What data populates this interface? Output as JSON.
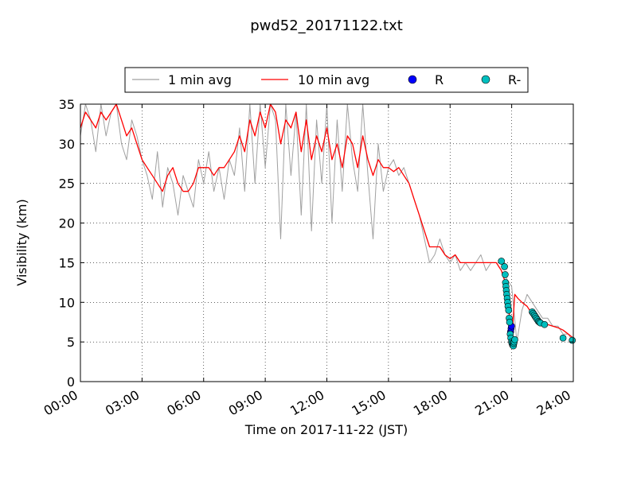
{
  "chart_data": {
    "type": "line",
    "title": "pwd52_20171122.txt",
    "xlabel": "Time on 2017-11-22 (JST)",
    "ylabel": "Visibility (km)",
    "x_unit": "hours",
    "xlim": [
      0,
      24
    ],
    "ylim": [
      0,
      35
    ],
    "x_ticks": [
      0,
      3,
      6,
      9,
      12,
      15,
      18,
      21,
      24
    ],
    "x_tick_labels": [
      "00:00",
      "03:00",
      "06:00",
      "09:00",
      "12:00",
      "15:00",
      "18:00",
      "21:00",
      "24:00"
    ],
    "y_ticks": [
      0,
      5,
      10,
      15,
      20,
      25,
      30,
      35
    ],
    "y_tick_labels": [
      "0",
      "5",
      "10",
      "15",
      "20",
      "25",
      "30",
      "35"
    ],
    "grid": true,
    "legend_placement": "top-center",
    "series": [
      {
        "name": "1 min avg",
        "kind": "line",
        "color": "#a0a0a0",
        "x": [
          0,
          0.25,
          0.5,
          0.75,
          1.0,
          1.25,
          1.5,
          1.75,
          2.0,
          2.25,
          2.5,
          2.75,
          3.0,
          3.25,
          3.5,
          3.75,
          4.0,
          4.25,
          4.5,
          4.75,
          5.0,
          5.25,
          5.5,
          5.75,
          6.0,
          6.25,
          6.5,
          6.75,
          7.0,
          7.25,
          7.5,
          7.75,
          8.0,
          8.25,
          8.5,
          8.75,
          9.0,
          9.25,
          9.5,
          9.75,
          10.0,
          10.25,
          10.5,
          10.75,
          11.0,
          11.25,
          11.5,
          11.75,
          12.0,
          12.25,
          12.5,
          12.75,
          13.0,
          13.25,
          13.5,
          13.75,
          14.0,
          14.25,
          14.5,
          14.75,
          15.0,
          15.25,
          15.5,
          15.75,
          16.0,
          16.25,
          16.5,
          16.75,
          17.0,
          17.25,
          17.5,
          17.75,
          18.0,
          18.25,
          18.5,
          18.75,
          19.0,
          19.25,
          19.5,
          19.75,
          20.0,
          20.25,
          20.5,
          20.75,
          21.0,
          21.25,
          21.5,
          21.75,
          22.0,
          22.25,
          22.5,
          22.75,
          23.0,
          23.25,
          23.5,
          23.75,
          24.0
        ],
        "y": [
          31,
          35,
          33,
          29,
          35,
          31,
          34,
          35,
          30,
          28,
          33,
          31,
          28,
          26,
          23,
          29,
          22,
          27,
          25,
          21,
          26,
          24,
          22,
          28,
          25,
          29,
          24,
          27,
          23,
          28,
          26,
          32,
          24,
          35,
          25,
          35,
          27,
          35,
          33,
          18,
          35,
          26,
          34,
          21,
          35,
          19,
          33,
          25,
          35,
          20,
          33,
          24,
          35,
          28,
          24,
          35,
          26,
          18,
          30,
          24,
          27,
          28,
          26,
          27,
          25,
          23,
          21,
          18,
          15,
          16,
          18,
          16,
          15,
          16,
          14,
          15,
          14,
          15,
          16,
          14,
          15,
          15,
          14,
          13,
          12,
          5,
          9,
          11,
          10,
          9,
          8,
          8,
          7,
          7,
          6,
          6,
          5
        ]
      },
      {
        "name": "10 min avg",
        "kind": "line",
        "color": "#ff0000",
        "x": [
          0,
          0.25,
          0.5,
          0.75,
          1.0,
          1.25,
          1.5,
          1.75,
          2.0,
          2.25,
          2.5,
          2.75,
          3.0,
          3.25,
          3.5,
          3.75,
          4.0,
          4.25,
          4.5,
          4.75,
          5.0,
          5.25,
          5.5,
          5.75,
          6.0,
          6.25,
          6.5,
          6.75,
          7.0,
          7.25,
          7.5,
          7.75,
          8.0,
          8.25,
          8.5,
          8.75,
          9.0,
          9.25,
          9.5,
          9.75,
          10.0,
          10.25,
          10.5,
          10.75,
          11.0,
          11.25,
          11.5,
          11.75,
          12.0,
          12.25,
          12.5,
          12.75,
          13.0,
          13.25,
          13.5,
          13.75,
          14.0,
          14.25,
          14.5,
          14.75,
          15.0,
          15.25,
          15.5,
          15.75,
          16.0,
          16.25,
          16.5,
          16.75,
          17.0,
          17.25,
          17.5,
          17.75,
          18.0,
          18.25,
          18.5,
          18.75,
          19.0,
          19.25,
          19.5,
          19.75,
          20.0,
          20.25,
          20.5,
          20.75,
          20.9,
          21.0,
          21.15,
          21.3,
          21.5,
          21.75,
          22.0,
          22.25,
          22.5,
          22.75,
          23.0,
          23.25,
          23.5,
          23.75,
          24.0
        ],
        "y": [
          32,
          34,
          33,
          32,
          34,
          33,
          34,
          35,
          33,
          31,
          32,
          30,
          28,
          27,
          26,
          25,
          24,
          26,
          27,
          25,
          24,
          24,
          25,
          27,
          27,
          27,
          26,
          27,
          27,
          28,
          29,
          31,
          29,
          33,
          31,
          34,
          32,
          35,
          34,
          30,
          33,
          32,
          34,
          29,
          33,
          28,
          31,
          29,
          32,
          28,
          30,
          27,
          31,
          30,
          27,
          31,
          28,
          26,
          28,
          27,
          27,
          26.5,
          27,
          26,
          25,
          23,
          21,
          19,
          17,
          17,
          17,
          16,
          15.5,
          16,
          15,
          15,
          15,
          15,
          15,
          15,
          15,
          15,
          14,
          12,
          8,
          5,
          11,
          10.5,
          10,
          9.5,
          8.5,
          8,
          7.5,
          7.2,
          7,
          6.8,
          6.5,
          6,
          5.5
        ]
      },
      {
        "name": "R",
        "kind": "scatter",
        "color": "#0000ff",
        "x": [
          20.95,
          20.97,
          20.99
        ],
        "y": [
          6.3,
          6.7,
          7.0
        ]
      },
      {
        "name": "R-",
        "kind": "scatter",
        "color": "#00bfbf",
        "x": [
          20.5,
          20.65,
          20.68,
          20.7,
          20.72,
          20.74,
          20.76,
          20.78,
          20.8,
          20.82,
          20.85,
          20.88,
          20.9,
          20.93,
          20.96,
          21.0,
          21.02,
          21.05,
          21.08,
          21.1,
          21.12,
          21.15,
          22.0,
          22.05,
          22.1,
          22.15,
          22.2,
          22.25,
          22.3,
          22.35,
          22.4,
          22.6,
          23.5,
          23.95
        ],
        "y": [
          15.2,
          14.5,
          13.5,
          12.5,
          12.0,
          11.5,
          11.0,
          10.5,
          10.0,
          9.5,
          9.0,
          8.0,
          7.5,
          6.0,
          5.5,
          5.0,
          4.8,
          4.6,
          4.5,
          4.8,
          5.0,
          5.3,
          8.8,
          8.6,
          8.4,
          8.2,
          8.0,
          7.8,
          7.6,
          7.5,
          7.4,
          7.2,
          5.5,
          5.2
        ]
      }
    ]
  }
}
